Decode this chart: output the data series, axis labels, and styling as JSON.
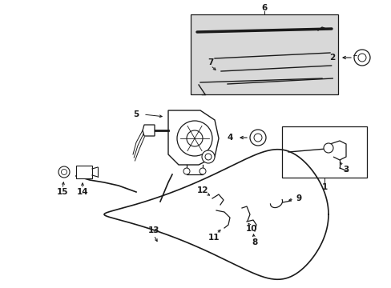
{
  "bg_color": "#ffffff",
  "fig_width": 4.89,
  "fig_height": 3.6,
  "dpi": 100,
  "line_color": "#1a1a1a",
  "gray_fill": "#d8d8d8",
  "white": "#ffffff"
}
